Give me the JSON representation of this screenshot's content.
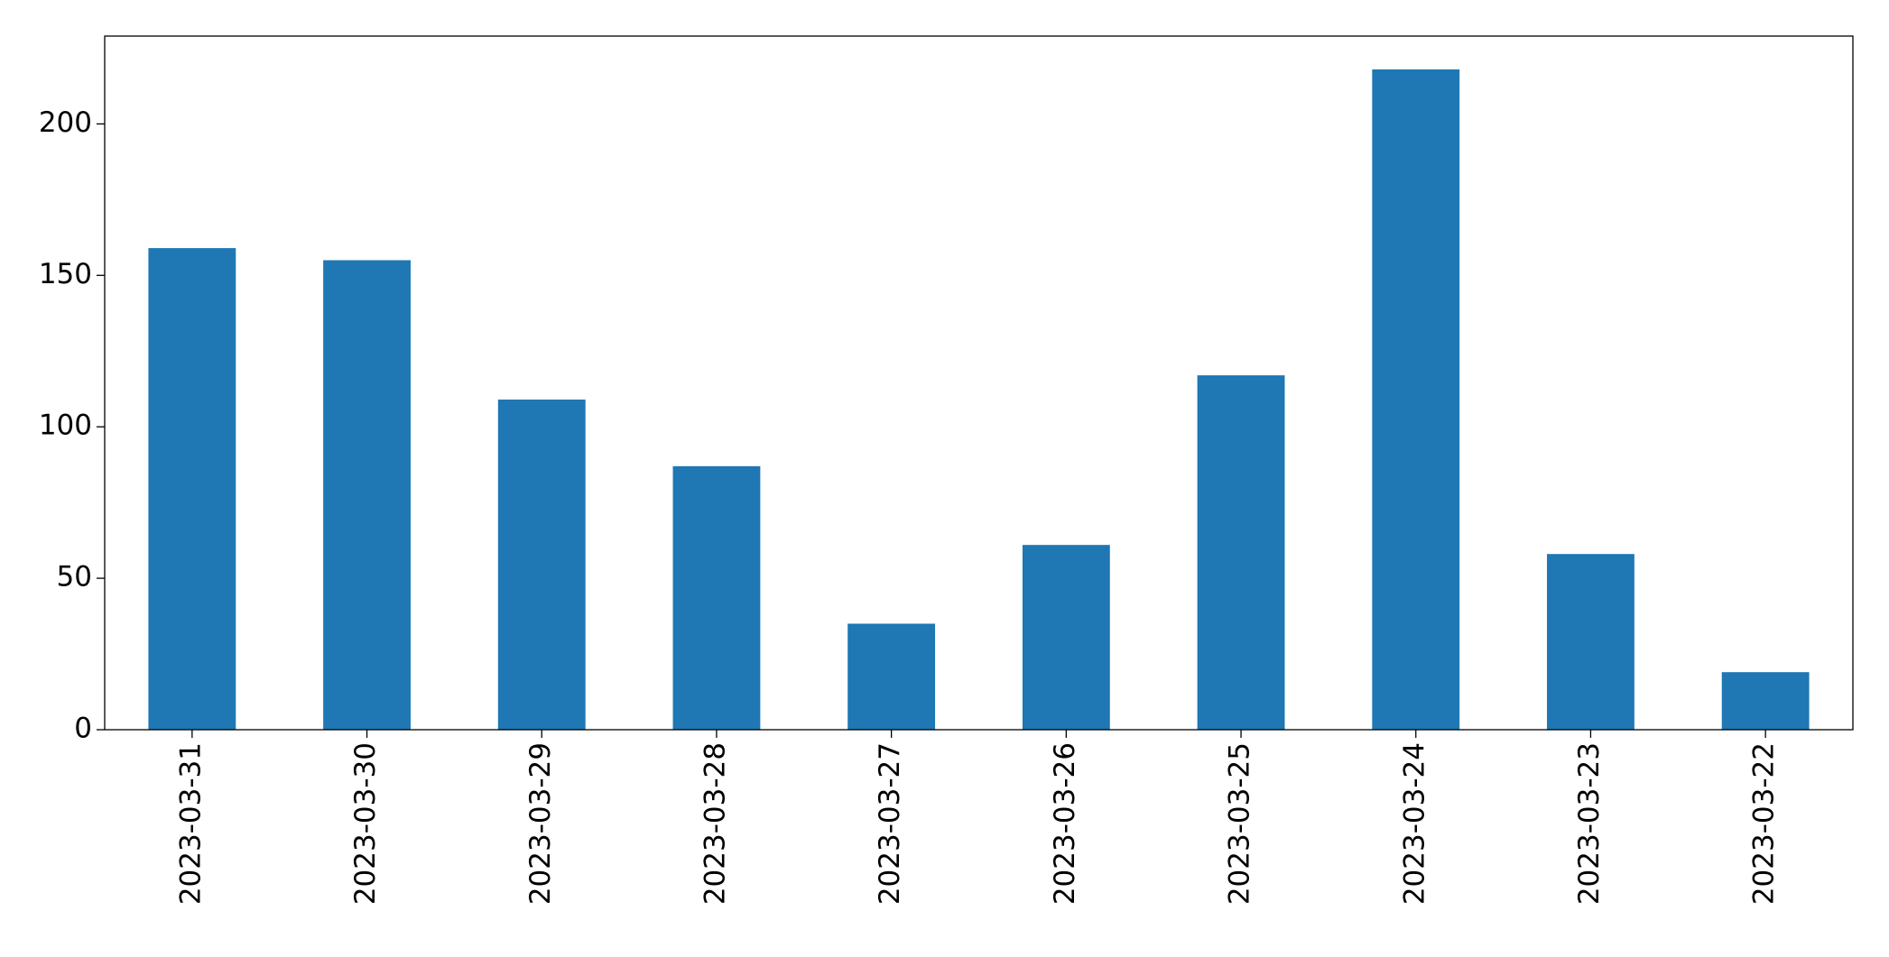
{
  "chart_data": {
    "type": "bar",
    "categories": [
      "2023-03-31",
      "2023-03-30",
      "2023-03-29",
      "2023-03-28",
      "2023-03-27",
      "2023-03-26",
      "2023-03-25",
      "2023-03-24",
      "2023-03-23",
      "2023-03-22"
    ],
    "values": [
      159,
      155,
      109,
      87,
      35,
      61,
      117,
      218,
      58,
      19
    ],
    "color": "#1f77b4",
    "ylim": [
      0,
      229
    ],
    "yticks": [
      0,
      50,
      100,
      150,
      200
    ],
    "grid": false
  }
}
